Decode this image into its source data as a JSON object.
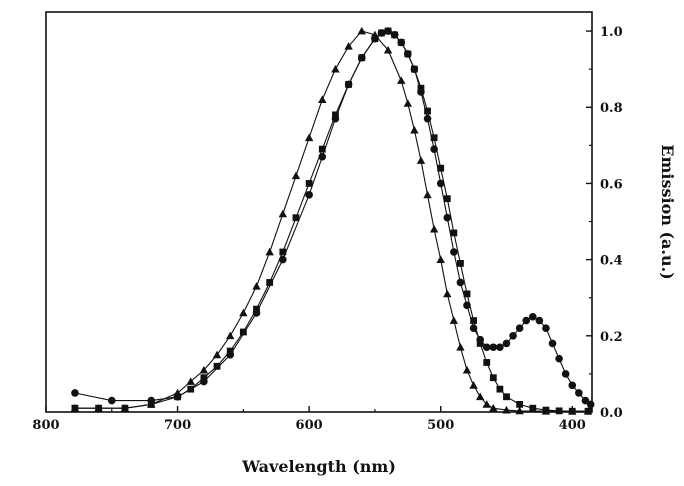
{
  "chart_data": {
    "type": "scatter",
    "xlabel": "Wavelength (nm)",
    "ylabel": "Emission (a.u.)",
    "xlim": [
      800,
      385
    ],
    "ylim": [
      0,
      1.05
    ],
    "x_ticks": [
      "800",
      "700",
      "600",
      "500",
      "400"
    ],
    "y_ticks": [
      "0.0",
      "0.2",
      "0.4",
      "0.6",
      "0.8",
      "1.0"
    ],
    "x_reversed": true,
    "y_axis_side": "right",
    "grid": false,
    "legend": "none",
    "series": [
      {
        "marker": "triangle",
        "x": [
          778,
          760,
          740,
          720,
          700,
          690,
          680,
          670,
          660,
          650,
          640,
          630,
          620,
          610,
          600,
          590,
          580,
          570,
          560,
          550,
          540,
          530,
          525,
          520,
          515,
          510,
          505,
          500,
          495,
          490,
          485,
          480,
          475,
          470,
          465,
          460,
          450,
          440,
          420,
          400,
          388
        ],
        "y": [
          0.01,
          0.01,
          0.01,
          0.02,
          0.05,
          0.08,
          0.11,
          0.15,
          0.2,
          0.26,
          0.33,
          0.42,
          0.52,
          0.62,
          0.72,
          0.82,
          0.9,
          0.96,
          1.0,
          0.99,
          0.95,
          0.87,
          0.81,
          0.74,
          0.66,
          0.57,
          0.48,
          0.4,
          0.31,
          0.24,
          0.17,
          0.11,
          0.07,
          0.04,
          0.02,
          0.01,
          0.005,
          0.003,
          0.002,
          0.002,
          0.002
        ]
      },
      {
        "marker": "square",
        "x": [
          778,
          760,
          740,
          720,
          700,
          690,
          680,
          670,
          660,
          650,
          640,
          630,
          620,
          610,
          600,
          590,
          580,
          570,
          560,
          550,
          545,
          540,
          535,
          530,
          525,
          520,
          515,
          510,
          505,
          500,
          495,
          490,
          485,
          480,
          475,
          470,
          465,
          460,
          455,
          450,
          440,
          430,
          420,
          410,
          400,
          388
        ],
        "y": [
          0.01,
          0.01,
          0.01,
          0.02,
          0.04,
          0.06,
          0.09,
          0.12,
          0.16,
          0.21,
          0.27,
          0.34,
          0.42,
          0.51,
          0.6,
          0.69,
          0.78,
          0.86,
          0.93,
          0.98,
          0.995,
          1.0,
          0.99,
          0.97,
          0.94,
          0.9,
          0.85,
          0.79,
          0.72,
          0.64,
          0.56,
          0.47,
          0.39,
          0.31,
          0.24,
          0.18,
          0.13,
          0.09,
          0.06,
          0.04,
          0.02,
          0.01,
          0.005,
          0.003,
          0.002,
          0.002
        ]
      },
      {
        "marker": "circle",
        "x": [
          778,
          750,
          720,
          700,
          680,
          660,
          640,
          620,
          600,
          590,
          580,
          570,
          560,
          550,
          545,
          540,
          535,
          530,
          525,
          520,
          515,
          510,
          505,
          500,
          495,
          490,
          485,
          480,
          475,
          470,
          465,
          460,
          455,
          450,
          445,
          440,
          435,
          430,
          425,
          420,
          415,
          410,
          405,
          400,
          395,
          390,
          386
        ],
        "y": [
          0.05,
          0.03,
          0.03,
          0.04,
          0.08,
          0.15,
          0.26,
          0.4,
          0.57,
          0.67,
          0.77,
          0.86,
          0.93,
          0.98,
          0.995,
          1.0,
          0.99,
          0.97,
          0.94,
          0.9,
          0.84,
          0.77,
          0.69,
          0.6,
          0.51,
          0.42,
          0.34,
          0.28,
          0.22,
          0.19,
          0.17,
          0.17,
          0.17,
          0.18,
          0.2,
          0.22,
          0.24,
          0.25,
          0.24,
          0.22,
          0.18,
          0.14,
          0.1,
          0.07,
          0.05,
          0.03,
          0.02
        ]
      }
    ]
  }
}
